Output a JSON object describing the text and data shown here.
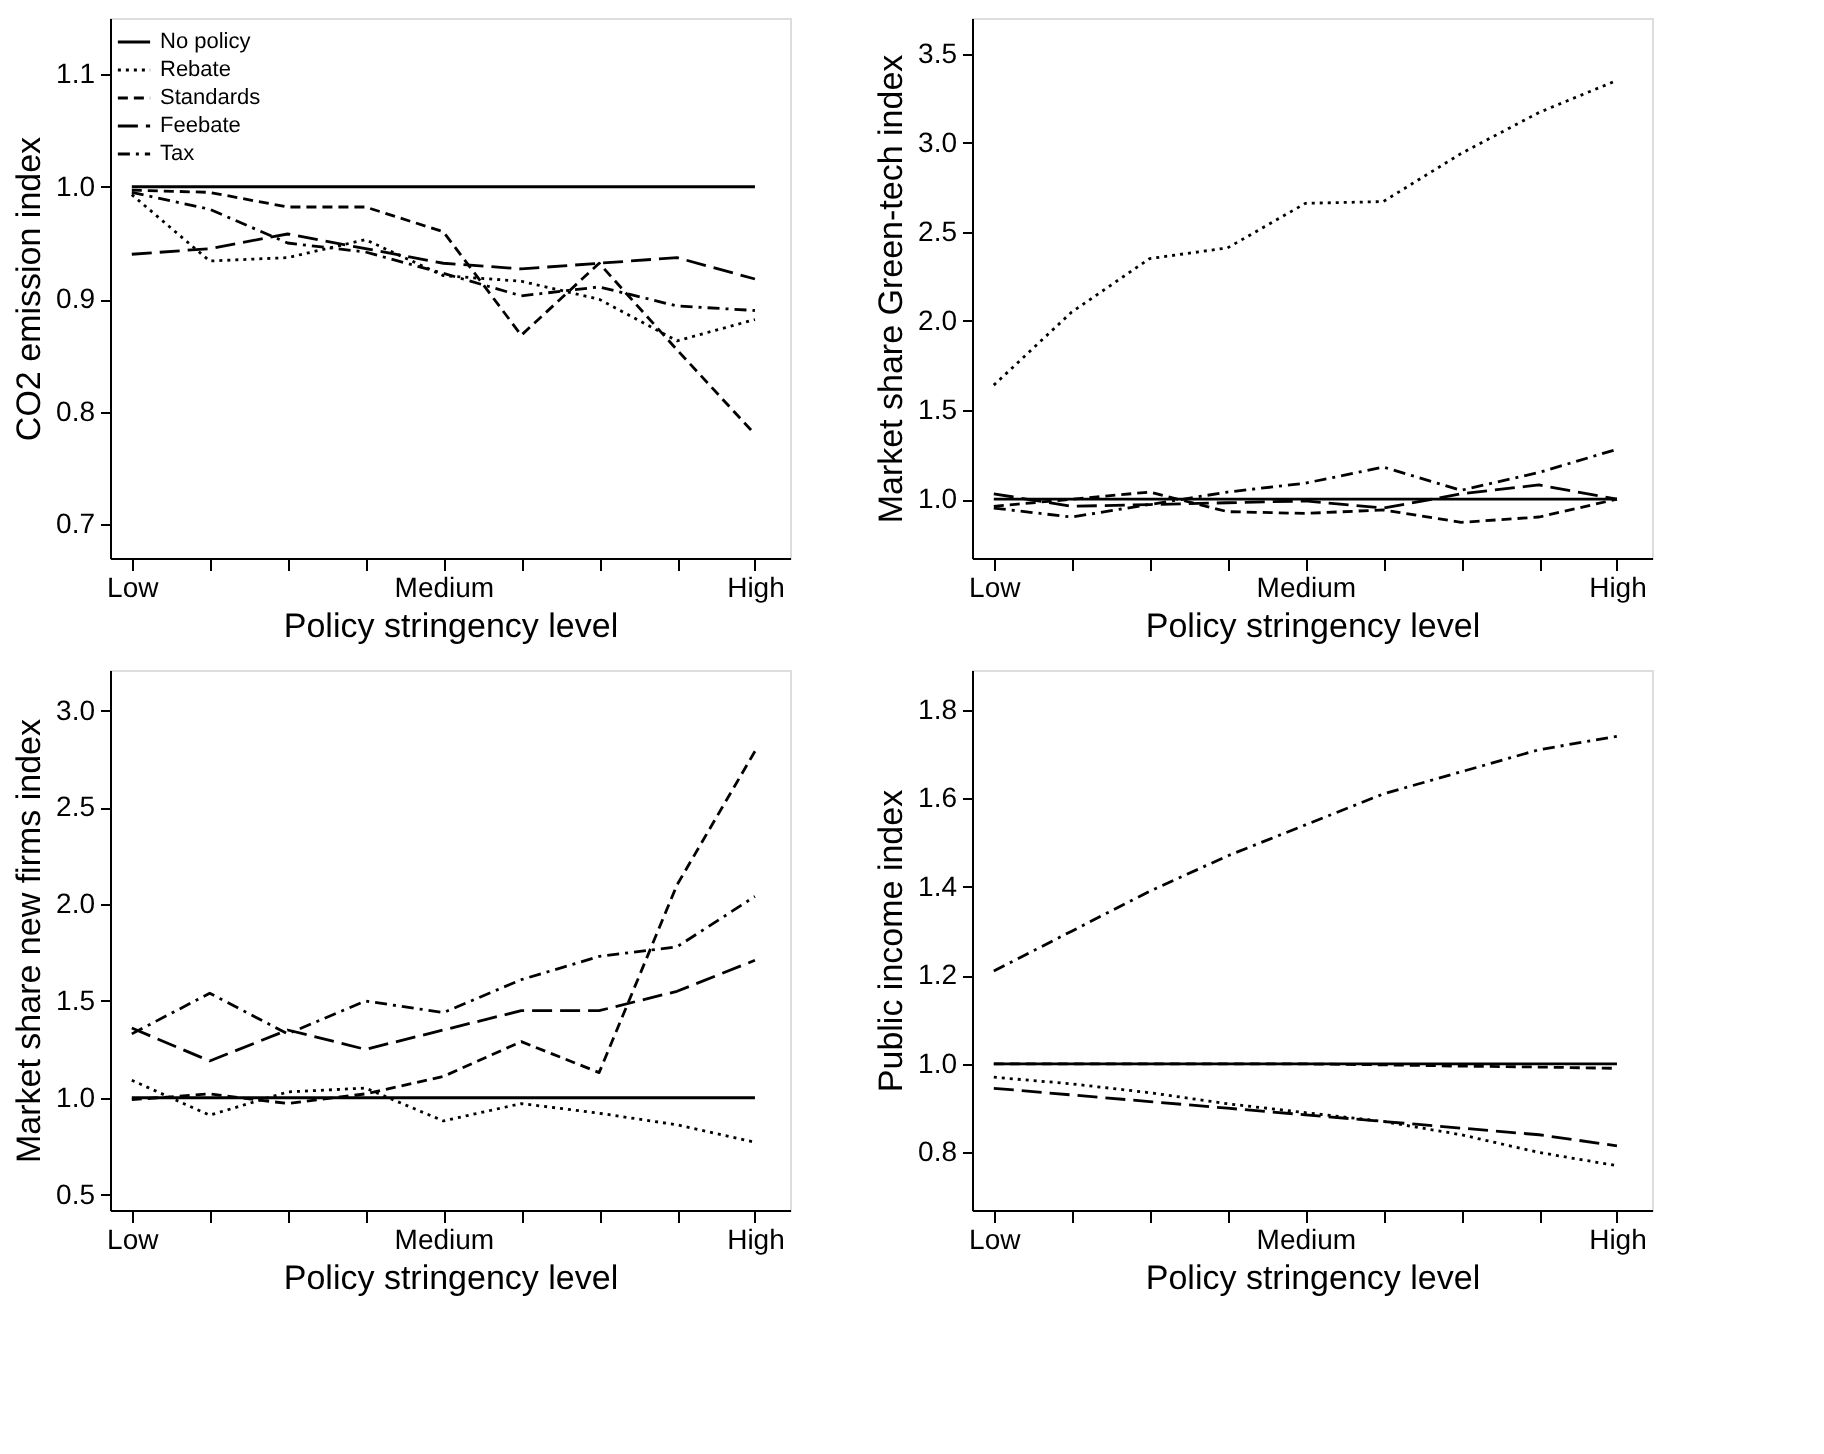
{
  "chart_data": [
    {
      "type": "line",
      "ylabel": "CO2 emission index",
      "xlabel": "Policy stringency level",
      "categories": [
        "Low",
        null,
        null,
        null,
        "Medium",
        null,
        null,
        null,
        "High"
      ],
      "ylim": [
        0.67,
        1.15
      ],
      "yticks": [
        0.7,
        0.8,
        0.9,
        {
          "value": 1,
          "label": "1.0"
        },
        1.1
      ],
      "legend": "top left",
      "grid": false,
      "series": [
        {
          "name": "No policy",
          "color": "#000000",
          "line_style": "solid",
          "values": [
            1,
            1,
            1,
            1,
            1,
            1,
            1,
            1,
            1
          ]
        },
        {
          "name": "Rebate",
          "color": "#000000",
          "line_style": "dotted",
          "values": [
            0.993,
            0.934,
            0.937,
            0.953,
            0.921,
            0.916,
            0.9,
            0.863,
            0.882
          ]
        },
        {
          "name": "Standards",
          "color": "#000000",
          "line_style": "dashed",
          "values": [
            0.997,
            0.995,
            0.982,
            0.982,
            0.96,
            0.868,
            0.932,
            0.855,
            0.78
          ]
        },
        {
          "name": "Feebate",
          "color": "#000000",
          "line_style": "longdashed",
          "values": [
            0.94,
            0.945,
            0.958,
            0.945,
            0.932,
            0.927,
            0.932,
            0.937,
            0.918
          ]
        },
        {
          "name": "Tax",
          "color": "#000000",
          "line_style": "dashdot",
          "values": [
            0.995,
            0.98,
            0.95,
            0.942,
            0.923,
            0.903,
            0.911,
            0.894,
            0.89
          ]
        }
      ]
    },
    {
      "type": "line",
      "ylabel": "Market share Green-tech index",
      "xlabel": "Policy stringency level",
      "categories": [
        "Low",
        null,
        null,
        null,
        "Medium",
        null,
        null,
        null,
        "High"
      ],
      "ylim": [
        0.67,
        3.7
      ],
      "yticks": [
        {
          "value": 1,
          "label": "1.0"
        },
        1.5,
        {
          "value": 2,
          "label": "2.0"
        },
        2.5,
        {
          "value": 3,
          "label": "3.0"
        },
        3.5
      ],
      "legend": "top left",
      "grid": false,
      "series": [
        {
          "name": "No policy",
          "color": "#000000",
          "line_style": "solid",
          "values": [
            1,
            1,
            1,
            1,
            1,
            1,
            1,
            1,
            1
          ]
        },
        {
          "name": "Rebate",
          "color": "#000000",
          "line_style": "dotted",
          "values": [
            1.64,
            2.05,
            2.35,
            2.41,
            2.66,
            2.67,
            2.94,
            3.17,
            3.35
          ]
        },
        {
          "name": "Standards",
          "color": "#000000",
          "line_style": "dashed",
          "values": [
            0.96,
            1.0,
            1.04,
            0.93,
            0.92,
            0.94,
            0.87,
            0.9,
            1.0
          ]
        },
        {
          "name": "Feebate",
          "color": "#000000",
          "line_style": "longdashed",
          "values": [
            1.03,
            0.96,
            0.97,
            0.98,
            0.99,
            0.95,
            1.03,
            1.08,
            1.0
          ]
        },
        {
          "name": "Tax",
          "color": "#000000",
          "line_style": "dashdot",
          "values": [
            0.95,
            0.9,
            0.97,
            1.04,
            1.09,
            1.18,
            1.05,
            1.15,
            1.28
          ]
        }
      ]
    },
    {
      "type": "line",
      "ylabel": "Market share new firms index",
      "xlabel": "Policy stringency level",
      "categories": [
        "Low",
        null,
        null,
        null,
        "Medium",
        null,
        null,
        null,
        "High"
      ],
      "ylim": [
        0.42,
        3.21
      ],
      "yticks": [
        0.5,
        {
          "value": 1,
          "label": "1.0"
        },
        1.5,
        {
          "value": 2,
          "label": "2.0"
        },
        2.5,
        {
          "value": 3,
          "label": "3.0"
        }
      ],
      "legend": "top left",
      "grid": false,
      "series": [
        {
          "name": "No policy",
          "color": "#000000",
          "line_style": "solid",
          "values": [
            1,
            1,
            1,
            1,
            1,
            1,
            1,
            1,
            1
          ]
        },
        {
          "name": "Rebate",
          "color": "#000000",
          "line_style": "dotted",
          "values": [
            1.09,
            0.91,
            1.03,
            1.05,
            0.88,
            0.97,
            0.92,
            0.86,
            0.77
          ]
        },
        {
          "name": "Standards",
          "color": "#000000",
          "line_style": "dashed",
          "values": [
            0.99,
            1.02,
            0.97,
            1.02,
            1.11,
            1.29,
            1.13,
            2.1,
            2.79
          ]
        },
        {
          "name": "Feebate",
          "color": "#000000",
          "line_style": "longdashed",
          "values": [
            1.36,
            1.19,
            1.35,
            1.25,
            1.35,
            1.45,
            1.45,
            1.55,
            1.71
          ]
        },
        {
          "name": "Tax",
          "color": "#000000",
          "line_style": "dashdot",
          "values": [
            1.33,
            1.54,
            1.33,
            1.5,
            1.44,
            1.61,
            1.73,
            1.78,
            2.04
          ]
        }
      ]
    },
    {
      "type": "line",
      "ylabel": "Public income index",
      "xlabel": "Policy stringency level",
      "categories": [
        "Low",
        null,
        null,
        null,
        "Medium",
        null,
        null,
        null,
        "High"
      ],
      "ylim": [
        0.67,
        1.89
      ],
      "yticks": [
        0.8,
        {
          "value": 1,
          "label": "1.0"
        },
        1.2,
        1.4,
        1.6,
        1.8
      ],
      "legend": "top left",
      "grid": false,
      "series": [
        {
          "name": "No policy",
          "color": "#000000",
          "line_style": "solid",
          "values": [
            1,
            1,
            1,
            1,
            1,
            1,
            1,
            1,
            1
          ]
        },
        {
          "name": "Rebate",
          "color": "#000000",
          "line_style": "dotted",
          "values": [
            0.97,
            0.955,
            0.935,
            0.91,
            0.89,
            0.87,
            0.84,
            0.8,
            0.77
          ]
        },
        {
          "name": "Standards",
          "color": "#000000",
          "line_style": "dashed",
          "values": [
            1.0,
            1.0,
            1.0,
            1.0,
            1.0,
            0.998,
            0.995,
            0.993,
            0.99
          ]
        },
        {
          "name": "Feebate",
          "color": "#000000",
          "line_style": "longdashed",
          "values": [
            0.945,
            0.93,
            0.915,
            0.9,
            0.885,
            0.87,
            0.855,
            0.84,
            0.815
          ]
        },
        {
          "name": "Tax",
          "color": "#000000",
          "line_style": "dashdot",
          "values": [
            1.21,
            1.3,
            1.39,
            1.47,
            1.54,
            1.61,
            1.66,
            1.71,
            1.74
          ]
        }
      ]
    }
  ]
}
